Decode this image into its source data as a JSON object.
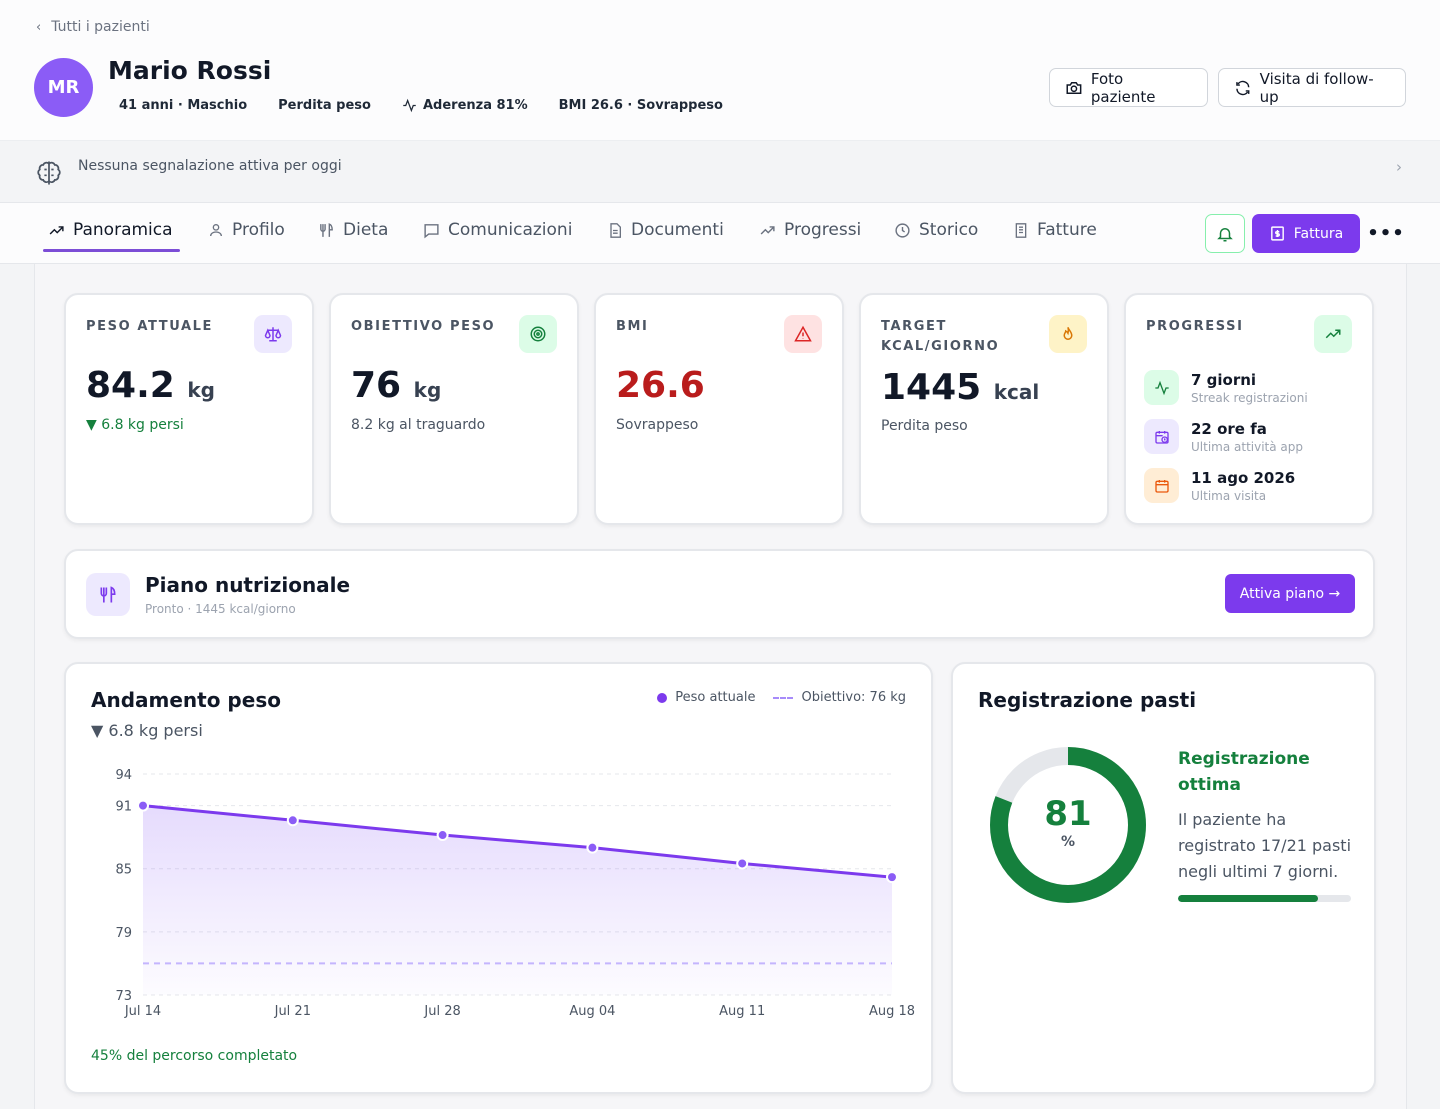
{
  "header": {
    "back_label": "Tutti i pazienti",
    "avatar_initials": "MR",
    "avatar_color": "#8b5cf6",
    "patient_name": "Mario Rossi",
    "meta": {
      "age_sex": "41 anni · Maschio",
      "goal": "Perdita peso",
      "adherence": "Aderenza 81%",
      "bmi": "BMI 26.6 · Sovrappeso"
    },
    "buttons": {
      "photo": "Foto paziente",
      "followup": "Visita di follow-up"
    }
  },
  "alert": {
    "text": "Nessuna segnalazione attiva per oggi"
  },
  "tabs": [
    {
      "label": "Panoramica",
      "icon": "trending-up-icon",
      "active": true
    },
    {
      "label": "Profilo",
      "icon": "user-icon"
    },
    {
      "label": "Dieta",
      "icon": "utensils-icon"
    },
    {
      "label": "Comunicazioni",
      "icon": "message-icon"
    },
    {
      "label": "Documenti",
      "icon": "document-icon"
    },
    {
      "label": "Progressi",
      "icon": "trending-up-icon"
    },
    {
      "label": "Storico",
      "icon": "clock-icon"
    },
    {
      "label": "Fatture",
      "icon": "receipt-icon"
    }
  ],
  "toolbar": {
    "invoice_label": "Fattura"
  },
  "stats": {
    "weight": {
      "label": "PESO ATTUALE",
      "value": "84.2",
      "unit": "kg",
      "sub": "▼ 6.8 kg persi"
    },
    "goal": {
      "label": "OBIETTIVO PESO",
      "value": "76",
      "unit": "kg",
      "sub": "8.2 kg al traguardo"
    },
    "bmi": {
      "label": "BMI",
      "value": "26.6",
      "sub": "Sovrappeso",
      "color": "#b91c1c"
    },
    "kcal": {
      "label_line1": "TARGET",
      "label_line2": "KCAL/GIORNO",
      "value": "1445",
      "unit": "kcal",
      "sub": "Perdita peso"
    },
    "progress": {
      "label": "PROGRESSI",
      "items": [
        {
          "title": "7 giorni",
          "sub": "Streak registrazioni",
          "icon": "activity-icon"
        },
        {
          "title": "22 ore fa",
          "sub": "Ultima attività app",
          "icon": "calendar-clock-icon"
        },
        {
          "title": "11 ago 2026",
          "sub": "Ultima visita",
          "icon": "calendar-icon"
        }
      ]
    }
  },
  "plan": {
    "title": "Piano nutrizionale",
    "subtitle": "Pronto · 1445 kcal/giorno",
    "button": "Attiva piano →"
  },
  "weight_chart": {
    "title": "Andamento peso",
    "subtitle": "▼ 6.8 kg persi",
    "legend_actual": "Peso attuale",
    "legend_goal": "Obiettivo: 76 kg",
    "footer": "45% del percorso completato"
  },
  "chart_data": {
    "type": "line",
    "title": "Andamento peso",
    "x": [
      "Jul 14",
      "Jul 21",
      "Jul 28",
      "Aug 04",
      "Aug 11",
      "Aug 18"
    ],
    "series": [
      {
        "name": "Peso attuale",
        "values": [
          91,
          89.6,
          88.2,
          87.0,
          85.5,
          84.2
        ]
      },
      {
        "name": "Obiettivo: 76 kg",
        "values": [
          76,
          76,
          76,
          76,
          76,
          76
        ]
      }
    ],
    "yticks": [
      73,
      79,
      85,
      91,
      94
    ],
    "ylim": [
      73,
      94
    ],
    "grid": true,
    "legend": "top-right",
    "colors": {
      "actual": "#7c3aed",
      "goal": "#c4b5fd"
    }
  },
  "meals": {
    "title": "Registrazione pasti",
    "percent": 81,
    "percent_symbol": "%",
    "headline": "Registrazione ottima",
    "description": "Il paziente ha registrato 17/21 pasti negli ultimi 7 giorni.",
    "bar_fraction": 0.81,
    "color": "#15803d"
  }
}
